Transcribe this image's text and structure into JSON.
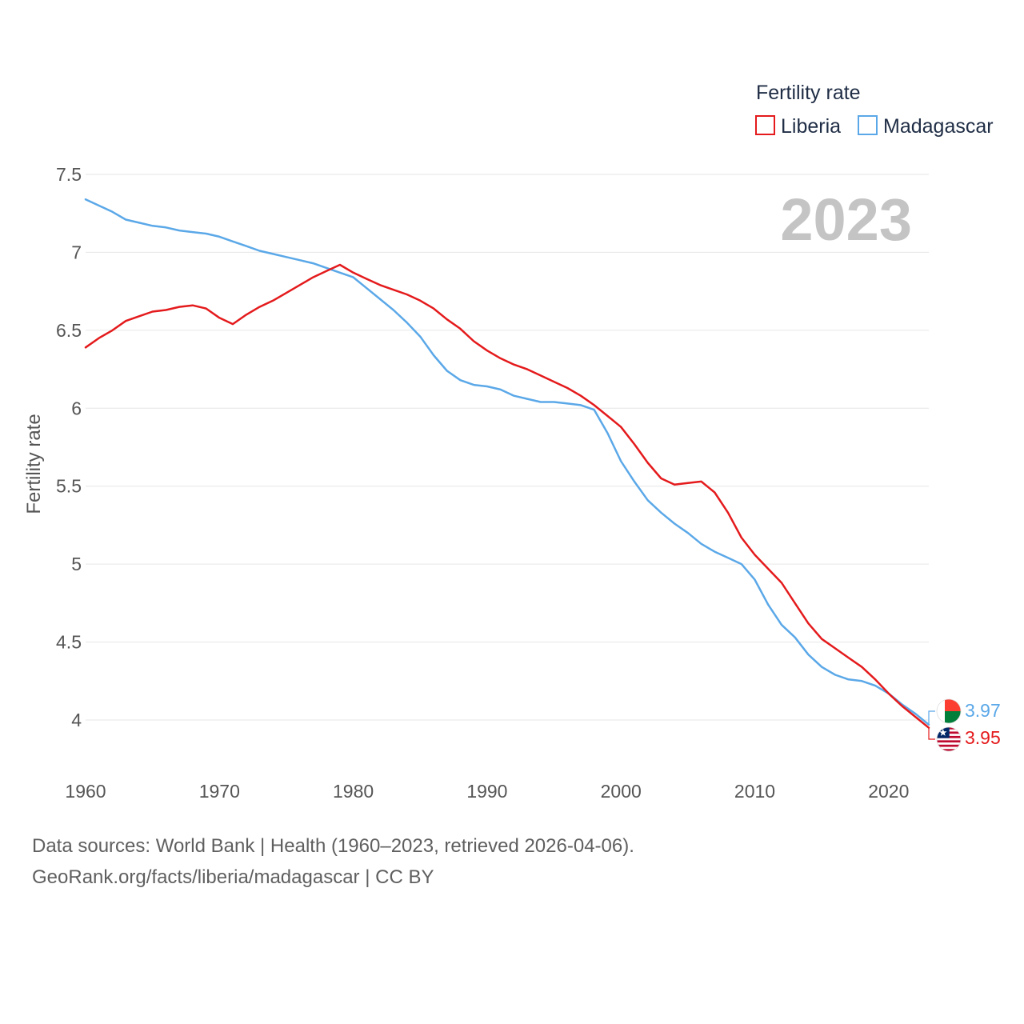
{
  "chart_data": {
    "type": "line",
    "title": "2023",
    "legend_title": "Fertility rate",
    "legend_position": "top-right",
    "xlabel": "",
    "ylabel": "Fertility rate",
    "xlim": [
      1960,
      2023
    ],
    "ylim": [
      3.75,
      7.5
    ],
    "x_ticks": [
      1960,
      1970,
      1980,
      1990,
      2000,
      2010,
      2020
    ],
    "y_ticks": [
      4,
      4.5,
      5,
      5.5,
      6,
      6.5,
      7,
      7.5
    ],
    "y_tick_labels": [
      "4",
      "4.5",
      "5",
      "5.5",
      "6",
      "6.5",
      "7",
      "7.5"
    ],
    "grid": true,
    "x": [
      1960,
      1961,
      1962,
      1963,
      1964,
      1965,
      1966,
      1967,
      1968,
      1969,
      1970,
      1971,
      1972,
      1973,
      1974,
      1975,
      1976,
      1977,
      1978,
      1979,
      1980,
      1981,
      1982,
      1983,
      1984,
      1985,
      1986,
      1987,
      1988,
      1989,
      1990,
      1991,
      1992,
      1993,
      1994,
      1995,
      1996,
      1997,
      1998,
      1999,
      2000,
      2001,
      2002,
      2003,
      2004,
      2005,
      2006,
      2007,
      2008,
      2009,
      2010,
      2011,
      2012,
      2013,
      2014,
      2015,
      2016,
      2017,
      2018,
      2019,
      2020,
      2021,
      2022,
      2023
    ],
    "series": [
      {
        "name": "Liberia",
        "color": "#e41a1c",
        "end_label": "3.95",
        "values": [
          6.39,
          6.45,
          6.5,
          6.56,
          6.59,
          6.62,
          6.63,
          6.65,
          6.66,
          6.64,
          6.58,
          6.54,
          6.6,
          6.65,
          6.69,
          6.74,
          6.79,
          6.84,
          6.88,
          6.92,
          6.87,
          6.83,
          6.79,
          6.76,
          6.73,
          6.69,
          6.64,
          6.57,
          6.51,
          6.43,
          6.37,
          6.32,
          6.28,
          6.25,
          6.21,
          6.17,
          6.13,
          6.08,
          6.02,
          5.95,
          5.88,
          5.77,
          5.65,
          5.55,
          5.51,
          5.52,
          5.53,
          5.46,
          5.33,
          5.17,
          5.06,
          4.97,
          4.88,
          4.75,
          4.62,
          4.52,
          4.46,
          4.4,
          4.34,
          4.26,
          4.17,
          4.09,
          4.02,
          3.95
        ]
      },
      {
        "name": "Madagascar",
        "color": "#5ba8e8",
        "end_label": "3.97",
        "values": [
          7.34,
          7.3,
          7.26,
          7.21,
          7.19,
          7.17,
          7.16,
          7.14,
          7.13,
          7.12,
          7.1,
          7.07,
          7.04,
          7.01,
          6.99,
          6.97,
          6.95,
          6.93,
          6.9,
          6.87,
          6.84,
          6.77,
          6.7,
          6.63,
          6.55,
          6.46,
          6.34,
          6.24,
          6.18,
          6.15,
          6.14,
          6.12,
          6.08,
          6.06,
          6.04,
          6.04,
          6.03,
          6.02,
          5.99,
          5.84,
          5.66,
          5.53,
          5.41,
          5.33,
          5.26,
          5.2,
          5.13,
          5.08,
          5.04,
          5.0,
          4.9,
          4.74,
          4.61,
          4.53,
          4.42,
          4.34,
          4.29,
          4.26,
          4.25,
          4.22,
          4.17,
          4.1,
          4.04,
          3.97
        ]
      }
    ]
  },
  "footer": {
    "line1": "Data sources: World Bank | Health (1960–2023, retrieved 2026-04-06).",
    "line2": "GeoRank.org/facts/liberia/madagascar | CC BY"
  },
  "flags": {
    "liberia": {
      "icon": "liberia-flag-icon",
      "red": "#bf0a30",
      "blue": "#002868",
      "white": "#ffffff"
    },
    "madagascar": {
      "icon": "madagascar-flag-icon",
      "red": "#fc3d32",
      "green": "#007e3a",
      "white": "#ffffff"
    }
  }
}
